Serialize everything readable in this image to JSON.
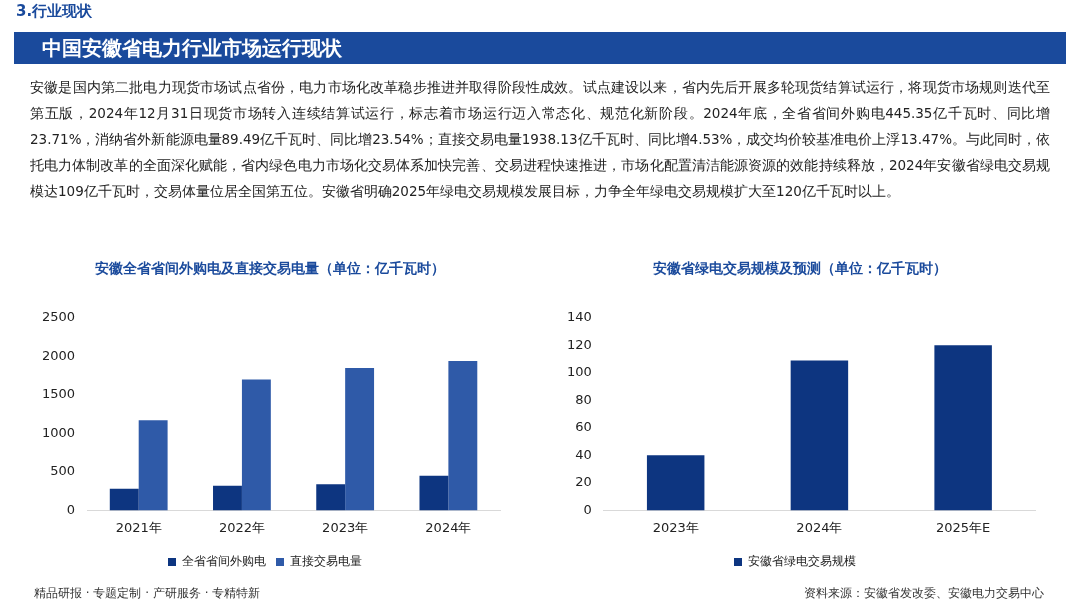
{
  "chart_data": [
    {
      "type": "other",
      "subtitle": "3.行业现状",
      "title": "中国安徽省电力行业市场运行现状",
      "annotations": [
        "安徽是国内第二批电力现货市场试点省份，电力市场化改革稳步推进并取得阶段性成效。试点建设以来，省内先后开展多轮现货结算试运行，将现货市场规则迭代至第五版，2024年12月31日现货市场转入连续结算试运行，标志着市场运行迈入常态化、规范化新阶段。2024年底，全省省间外购电445.35亿千瓦时、同比增23.71%，消纳省外新能源电量89.49亿千瓦时、同比增23.54%；直接交易电量1938.13亿千瓦时、同比增4.53%，成交均价较基准电价上浮13.47%。与此同时，依托电力体制改革的全面深化赋能，省内绿色电力市场化交易体系加快完善、交易进程快速推进，市场化配置清洁能源资源的效能持续释放，2024年安徽省绿电交易规模达109亿千瓦时，交易体量位居全国第五位。安徽省明确2025年绿电交易规模发展目标，力争全年绿电交易规模扩大至120亿千瓦时以上。",
        "精品研报 · 专题定制 · 产研服务 · 专精特新",
        "资料来源：安徽省发改委、安徽电力交易中心"
      ]
    },
    {
      "type": "bar",
      "title": "安徽全省省间外购电及直接交易电量（单位：亿千瓦时）",
      "categories": [
        "2021年",
        "2022年",
        "2023年",
        "2024年"
      ],
      "series": [
        {
          "name": "全省省间外购电",
          "color": "#0d3580",
          "values": [
            280,
            320,
            340,
            450
          ]
        },
        {
          "name": "直接交易电量",
          "color": "#2f5aa8",
          "values": [
            1170,
            1700,
            1850,
            1940
          ]
        }
      ],
      "ylim": [
        0,
        2500
      ],
      "yticks": [
        0,
        500,
        1000,
        1500,
        2000,
        2500
      ],
      "grid": false,
      "legend": "bottom"
    },
    {
      "type": "bar",
      "title": "安徽省绿电交易规模及预测（单位：亿千瓦时）",
      "categories": [
        "2023年",
        "2024年",
        "2025年E"
      ],
      "series": [
        {
          "name": "安徽省绿电交易规模",
          "color": "#0d3580",
          "values": [
            40,
            109,
            120
          ]
        }
      ],
      "ylim": [
        0,
        140
      ],
      "yticks": [
        0,
        20,
        40,
        60,
        80,
        100,
        120,
        140
      ],
      "grid": false,
      "legend": "bottom"
    }
  ]
}
